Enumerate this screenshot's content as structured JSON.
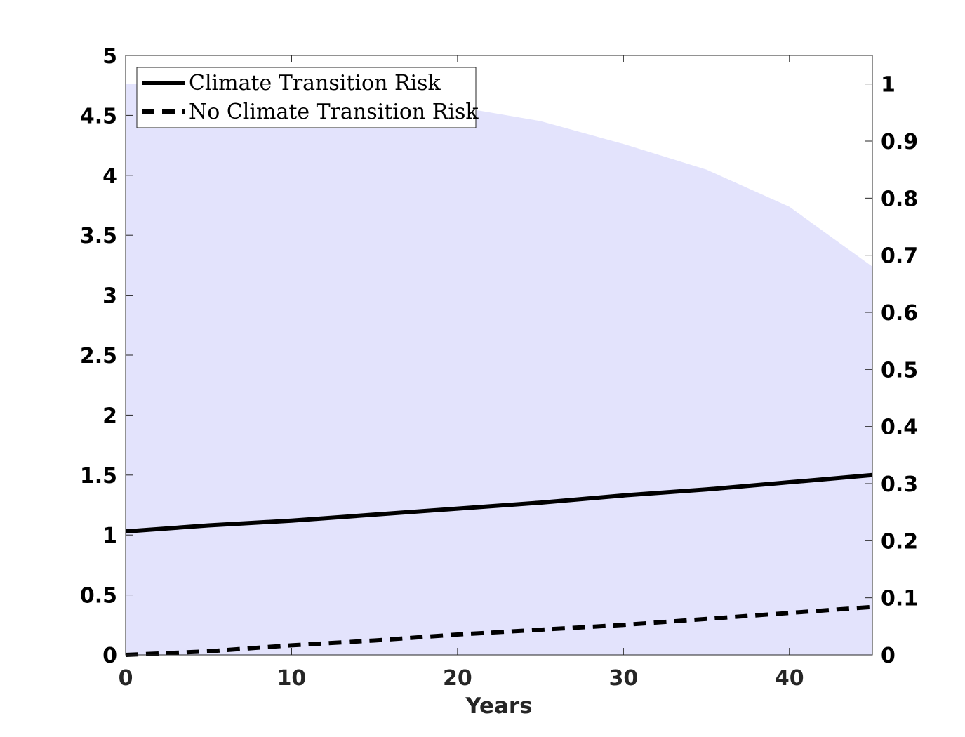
{
  "chart_data": {
    "type": "line",
    "title": "",
    "xlabel": "Years",
    "ylabel": "",
    "ylabel_right": "",
    "xlim": [
      0,
      45
    ],
    "ylim": [
      0,
      5
    ],
    "ylim_right": [
      0,
      1.05
    ],
    "grid": false,
    "legend_position": "top-left",
    "x_ticks": [
      "0",
      "10",
      "20",
      "30",
      "40"
    ],
    "y_ticks": [
      "0",
      "0.5",
      "1",
      "1.5",
      "2",
      "2.5",
      "3",
      "3.5",
      "4",
      "4.5",
      "5"
    ],
    "y_ticks_right": [
      "0",
      "0.1",
      "0.2",
      "0.3",
      "0.4",
      "0.5",
      "0.6",
      "0.7",
      "0.8",
      "0.9",
      "1"
    ],
    "series": [
      {
        "name": "Climate Transition Risk",
        "style": "solid",
        "axis": "left",
        "color": "#000000",
        "x": [
          0,
          5,
          10,
          15,
          20,
          25,
          30,
          35,
          40,
          45
        ],
        "y": [
          1.03,
          1.08,
          1.12,
          1.17,
          1.22,
          1.27,
          1.33,
          1.38,
          1.44,
          1.5
        ]
      },
      {
        "name": "No Climate Transition Risk",
        "style": "dashed",
        "axis": "left",
        "color": "#000000",
        "x": [
          0,
          5,
          10,
          15,
          20,
          25,
          30,
          35,
          40,
          45
        ],
        "y": [
          0.0,
          0.03,
          0.08,
          0.12,
          0.17,
          0.21,
          0.25,
          0.3,
          0.35,
          0.4
        ]
      }
    ],
    "area": {
      "axis": "right",
      "color": "#e3e3fc",
      "x": [
        0,
        5,
        10,
        15,
        20,
        25,
        30,
        35,
        40,
        45
      ],
      "y": [
        1.0,
        0.999,
        0.99,
        0.98,
        0.96,
        0.935,
        0.895,
        0.85,
        0.785,
        0.68
      ]
    }
  }
}
